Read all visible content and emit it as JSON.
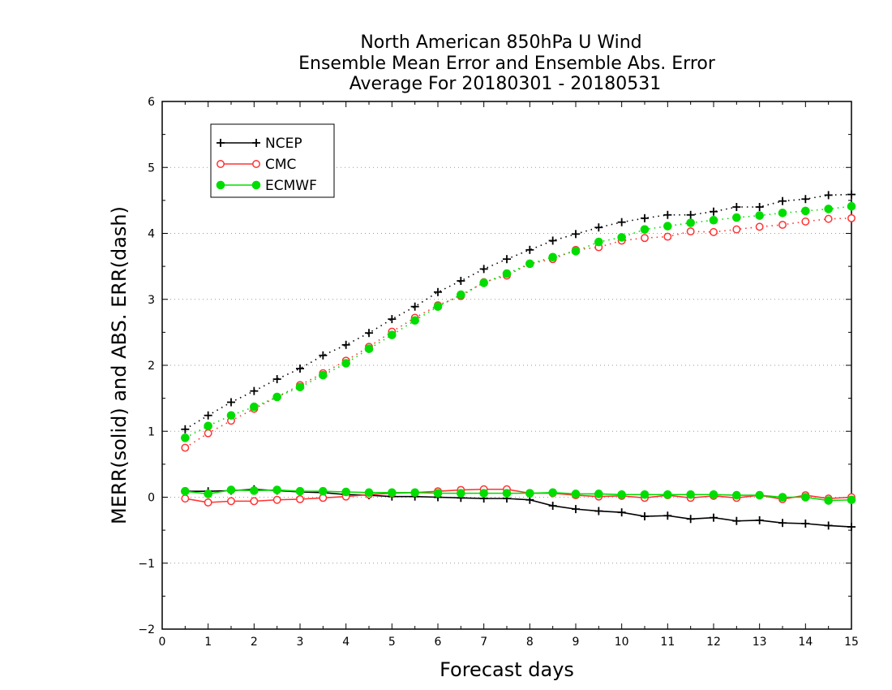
{
  "chart_data": {
    "type": "line",
    "title": [
      "North American 850hPa U Wind",
      "Ensemble Mean Error and Ensemble Abs. Error",
      "Average For 20180301 - 20180531"
    ],
    "xlabel": "Forecast days",
    "ylabel": "MERR(solid) and ABS. ERR(dash)",
    "xlim": [
      0,
      15
    ],
    "ylim": [
      -2,
      6
    ],
    "xticks": [
      "0",
      "1",
      "2",
      "3",
      "4",
      "5",
      "6",
      "7",
      "8",
      "9",
      "10",
      "11",
      "12",
      "13",
      "14",
      "15"
    ],
    "yticks": [
      "6",
      "5",
      "4",
      "3",
      "2",
      "1",
      "0",
      "−1",
      "−2"
    ],
    "grid": "horizontal dotted",
    "legend_position": "top-left",
    "x": [
      0.5,
      1,
      1.5,
      2,
      2.5,
      3,
      3.5,
      4,
      4.5,
      5,
      5.5,
      6,
      6.5,
      7,
      7.5,
      8,
      8.5,
      9,
      9.5,
      10,
      10.5,
      11,
      11.5,
      12,
      12.5,
      13,
      13.5,
      14,
      14.5,
      15
    ],
    "series": [
      {
        "name": "NCEP",
        "color": "#000000",
        "marker": "plus",
        "abs_err": [
          1.03,
          1.24,
          1.44,
          1.61,
          1.79,
          1.95,
          2.15,
          2.31,
          2.49,
          2.7,
          2.89,
          3.11,
          3.28,
          3.46,
          3.61,
          3.75,
          3.89,
          3.99,
          4.09,
          4.17,
          4.23,
          4.28,
          4.28,
          4.33,
          4.4,
          4.4,
          4.49,
          4.52,
          4.58,
          4.59
        ],
        "merr": [
          0.09,
          0.09,
          0.1,
          0.12,
          0.1,
          0.08,
          0.07,
          0.04,
          0.03,
          0.01,
          0.01,
          0.0,
          -0.01,
          -0.02,
          -0.02,
          -0.04,
          -0.13,
          -0.18,
          -0.21,
          -0.23,
          -0.29,
          -0.28,
          -0.33,
          -0.31,
          -0.36,
          -0.35,
          -0.39,
          -0.4,
          -0.43,
          -0.45
        ]
      },
      {
        "name": "CMC",
        "color": "#ff3333",
        "marker": "open-circle",
        "abs_err": [
          0.75,
          0.97,
          1.16,
          1.34,
          1.52,
          1.7,
          1.88,
          2.07,
          2.28,
          2.51,
          2.72,
          2.91,
          3.05,
          3.26,
          3.36,
          3.54,
          3.61,
          3.75,
          3.79,
          3.89,
          3.93,
          3.95,
          4.03,
          4.02,
          4.06,
          4.1,
          4.13,
          4.18,
          4.22,
          4.23
        ],
        "merr": [
          -0.02,
          -0.08,
          -0.06,
          -0.06,
          -0.04,
          -0.03,
          -0.01,
          0.01,
          0.04,
          0.06,
          0.07,
          0.09,
          0.11,
          0.12,
          0.12,
          0.06,
          0.06,
          0.03,
          0.01,
          0.02,
          -0.01,
          0.03,
          -0.01,
          0.02,
          -0.01,
          0.03,
          -0.03,
          0.03,
          -0.02,
          0.0
        ]
      },
      {
        "name": "ECMWF",
        "color": "#00dd00",
        "marker": "filled-circle",
        "abs_err": [
          0.9,
          1.08,
          1.24,
          1.37,
          1.52,
          1.67,
          1.85,
          2.03,
          2.25,
          2.46,
          2.68,
          2.89,
          3.07,
          3.25,
          3.39,
          3.54,
          3.64,
          3.73,
          3.87,
          3.94,
          4.06,
          4.11,
          4.16,
          4.2,
          4.24,
          4.27,
          4.31,
          4.34,
          4.37,
          4.41
        ],
        "merr": [
          0.09,
          0.05,
          0.11,
          0.1,
          0.11,
          0.09,
          0.09,
          0.08,
          0.07,
          0.07,
          0.07,
          0.06,
          0.06,
          0.06,
          0.06,
          0.06,
          0.07,
          0.05,
          0.05,
          0.04,
          0.04,
          0.04,
          0.04,
          0.04,
          0.03,
          0.03,
          0.0,
          0.0,
          -0.05,
          -0.04
        ]
      }
    ]
  }
}
